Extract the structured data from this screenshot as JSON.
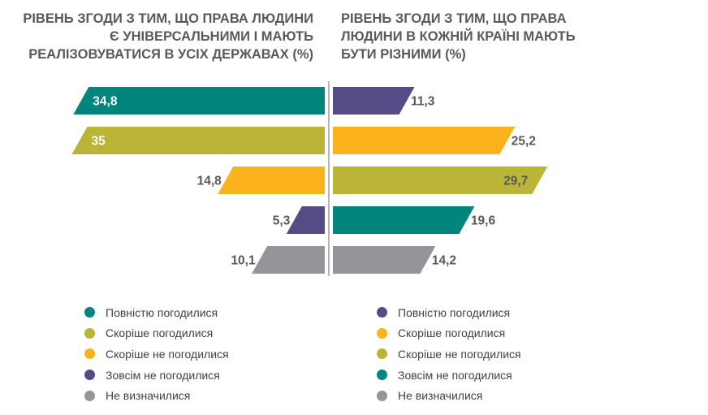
{
  "colors": {
    "teal": "#00857c",
    "olive": "#bab536",
    "orange": "#fbb21d",
    "purple": "#554b87",
    "gray": "#939598",
    "divider": "#6d6e71"
  },
  "chart_data": [
    {
      "type": "bar",
      "orientation": "horizontal",
      "direction": "leftward",
      "title": "РІВЕНЬ ЗГОДИ З ТИМ, ЩО ПРАВА ЛЮДИНИ Є УНІВЕРСАЛЬНИМИ І МАЮТЬ РЕАЛІЗОВУВАТИСЯ В УСІХ ДЕРЖАВАХ (%)",
      "categories": [
        "Повністю погодилися",
        "Скоріше погодилися",
        "Скоріше не погодилися",
        "Зовсім не погодилися",
        "Не визначилися"
      ],
      "values": [
        34.8,
        35,
        14.8,
        5.3,
        10.1
      ],
      "labels": [
        "34,8",
        "35",
        "14,8",
        "5,3",
        "10,1"
      ],
      "colors": [
        "#00857c",
        "#bab536",
        "#fbb21d",
        "#554b87",
        "#939598"
      ],
      "label_colors": [
        "#ffffff",
        "#ffffff",
        "#58595b",
        "#58595b",
        "#58595b"
      ],
      "label_position": [
        "inside",
        "inside",
        "outside",
        "outside",
        "outside"
      ],
      "xlim": [
        0,
        35
      ],
      "legend": [
        {
          "label": "Повністю погодилися",
          "color": "#00857c"
        },
        {
          "label": "Скоріше погодилися",
          "color": "#bab536"
        },
        {
          "label": "Скоріше не погодилися",
          "color": "#fbb21d"
        },
        {
          "label": "Зовсім не погодилися",
          "color": "#554b87"
        },
        {
          "label": "Не визначилися",
          "color": "#939598"
        }
      ]
    },
    {
      "type": "bar",
      "orientation": "horizontal",
      "direction": "rightward",
      "title": "РІВЕНЬ ЗГОДИ З ТИМ, ЩО ПРАВА ЛЮДИНИ В КОЖНІЙ КРАЇНІ МАЮТЬ БУТИ РІЗНИМИ (%)",
      "categories": [
        "Повністю погодилися",
        "Скоріше погодилися",
        "Скоріше не погодилися",
        "Зовсім не погодилися",
        "Не визначилися"
      ],
      "values": [
        11.3,
        25.2,
        29.7,
        19.6,
        14.2
      ],
      "labels": [
        "11,3",
        "25,2",
        "29,7",
        "19,6",
        "14,2"
      ],
      "colors": [
        "#554b87",
        "#fbb21d",
        "#bab536",
        "#00857c",
        "#939598"
      ],
      "label_colors": [
        "#58595b",
        "#58595b",
        "#58595b",
        "#58595b",
        "#58595b"
      ],
      "label_position": [
        "outside",
        "outside",
        "inside",
        "outside",
        "outside"
      ],
      "xlim": [
        0,
        35
      ],
      "legend": [
        {
          "label": "Повністю погодилися",
          "color": "#554b87"
        },
        {
          "label": "Скоріше погодилися",
          "color": "#fbb21d"
        },
        {
          "label": "Скоріше не погодилися",
          "color": "#bab536"
        },
        {
          "label": "Зовсім не погодилися",
          "color": "#00857c"
        },
        {
          "label": "Не визначилися",
          "color": "#939598"
        }
      ]
    }
  ]
}
